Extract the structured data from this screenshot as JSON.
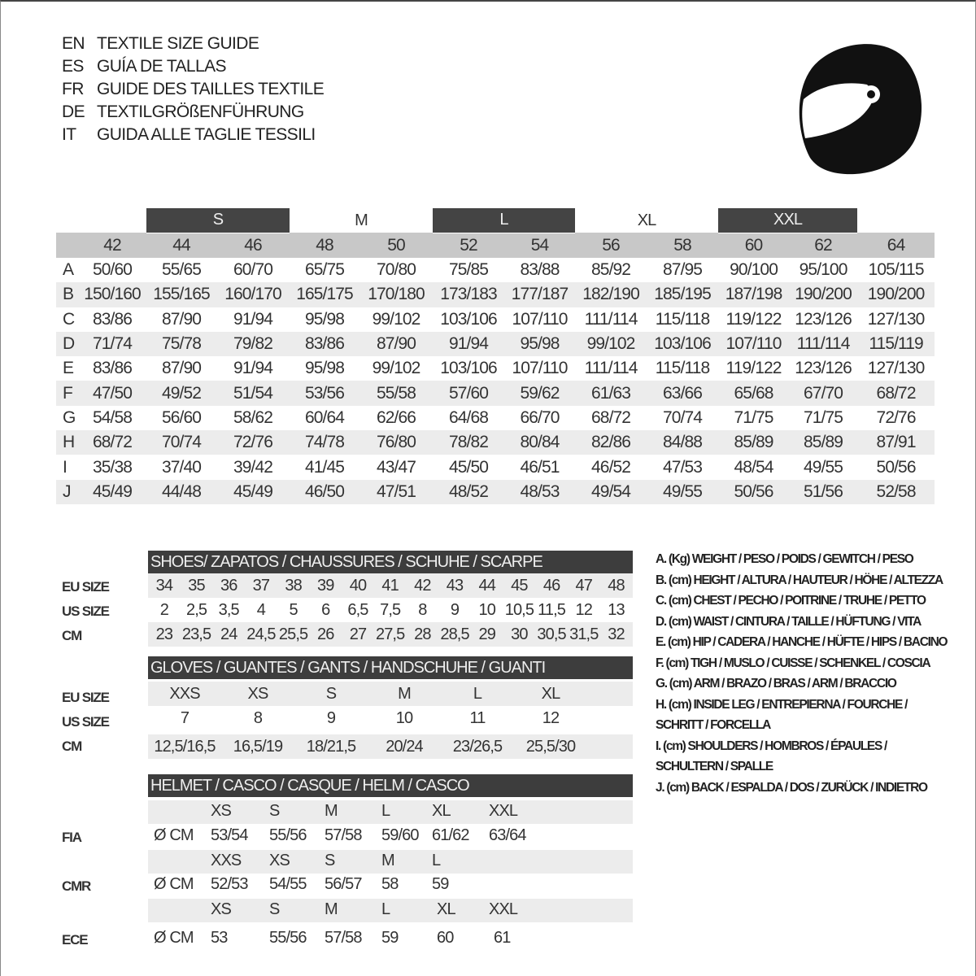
{
  "titles": [
    {
      "code": "EN",
      "text": "TEXTILE SIZE GUIDE"
    },
    {
      "code": "ES",
      "text": "GUÍA DE TALLAS"
    },
    {
      "code": "FR",
      "text": "GUIDE DES TAILLES TEXTILE"
    },
    {
      "code": "DE",
      "text": "TEXTILGRÖßENFÜHRUNG"
    },
    {
      "code": "IT",
      "text": "GUIDA ALLE TAGLIE TESSILI"
    }
  ],
  "icon": "helmet-icon",
  "textile": {
    "size_bands": [
      "S",
      "M",
      "L",
      "XL",
      "XXL"
    ],
    "columns": [
      "42",
      "44",
      "46",
      "48",
      "50",
      "52",
      "54",
      "56",
      "58",
      "60",
      "62",
      "64"
    ],
    "rows": [
      {
        "label": "A",
        "values": [
          "50/60",
          "55/65",
          "60/70",
          "65/75",
          "70/80",
          "75/85",
          "83/88",
          "85/92",
          "87/95",
          "90/100",
          "95/100",
          "105/115"
        ]
      },
      {
        "label": "B",
        "values": [
          "150/160",
          "155/165",
          "160/170",
          "165/175",
          "170/180",
          "173/183",
          "177/187",
          "182/190",
          "185/195",
          "187/198",
          "190/200",
          "190/200"
        ]
      },
      {
        "label": "C",
        "values": [
          "83/86",
          "87/90",
          "91/94",
          "95/98",
          "99/102",
          "103/106",
          "107/110",
          "111/114",
          "115/118",
          "119/122",
          "123/126",
          "127/130"
        ]
      },
      {
        "label": "D",
        "values": [
          "71/74",
          "75/78",
          "79/82",
          "83/86",
          "87/90",
          "91/94",
          "95/98",
          "99/102",
          "103/106",
          "107/110",
          "111/114",
          "115/119"
        ]
      },
      {
        "label": "E",
        "values": [
          "83/86",
          "87/90",
          "91/94",
          "95/98",
          "99/102",
          "103/106",
          "107/110",
          "111/114",
          "115/118",
          "119/122",
          "123/126",
          "127/130"
        ]
      },
      {
        "label": "F",
        "values": [
          "47/50",
          "49/52",
          "51/54",
          "53/56",
          "55/58",
          "57/60",
          "59/62",
          "61/63",
          "63/66",
          "65/68",
          "67/70",
          "68/72"
        ]
      },
      {
        "label": "G",
        "values": [
          "54/58",
          "56/60",
          "58/62",
          "60/64",
          "62/66",
          "64/68",
          "66/70",
          "68/72",
          "70/74",
          "71/75",
          "71/75",
          "72/76"
        ]
      },
      {
        "label": "H",
        "values": [
          "68/72",
          "70/74",
          "72/76",
          "74/78",
          "76/80",
          "78/82",
          "80/84",
          "82/86",
          "84/88",
          "85/89",
          "85/89",
          "87/91"
        ]
      },
      {
        "label": "I",
        "values": [
          "35/38",
          "37/40",
          "39/42",
          "41/45",
          "43/47",
          "45/50",
          "46/51",
          "46/52",
          "47/53",
          "48/54",
          "49/55",
          "50/56"
        ]
      },
      {
        "label": "J",
        "values": [
          "45/49",
          "44/48",
          "45/49",
          "46/50",
          "47/51",
          "48/52",
          "48/53",
          "49/54",
          "49/55",
          "50/56",
          "51/56",
          "52/58"
        ]
      }
    ]
  },
  "shoes": {
    "title": "SHOES/ ZAPATOS / CHAUSSURES / SCHUHE / SCARPE",
    "rows": [
      {
        "label": "EU SIZE",
        "values": [
          "34",
          "35",
          "36",
          "37",
          "38",
          "39",
          "40",
          "41",
          "42",
          "43",
          "44",
          "45",
          "46",
          "47",
          "48"
        ]
      },
      {
        "label": "US SIZE",
        "values": [
          "2",
          "2,5",
          "3,5",
          "4",
          "5",
          "6",
          "6,5",
          "7,5",
          "8",
          "9",
          "10",
          "10,5",
          "11,5",
          "12",
          "13"
        ]
      },
      {
        "label": "CM",
        "values": [
          "23",
          "23,5",
          "24",
          "24,5",
          "25,5",
          "26",
          "27",
          "27,5",
          "28",
          "28,5",
          "29",
          "30",
          "30,5",
          "31,5",
          "32"
        ]
      }
    ]
  },
  "gloves": {
    "title": "GLOVES / GUANTES / GANTS / HANDSCHUHE / GUANTI",
    "rows": [
      {
        "label": "EU SIZE",
        "values": [
          "XXS",
          "XS",
          "S",
          "M",
          "L",
          "XL"
        ]
      },
      {
        "label": "US SIZE",
        "values": [
          "7",
          "8",
          "9",
          "10",
          "11",
          "12"
        ]
      },
      {
        "label": "CM",
        "values": [
          "12,5/16,5",
          "16,5/19",
          "18/21,5",
          "20/24",
          "23/26,5",
          "25,5/30"
        ]
      }
    ]
  },
  "helmet": {
    "title": "HELMET / CASCO / CASQUE / HELM / CASCO",
    "unit": "Ø CM",
    "groups": [
      {
        "label": "FIA",
        "sizes": [
          "XS",
          "S",
          "M",
          "L",
          "XL",
          "XXL"
        ],
        "values": [
          "53/54",
          "55/56",
          "57/58",
          "59/60",
          "61/62",
          "63/64"
        ]
      },
      {
        "label": "CMR",
        "sizes": [
          "XXS",
          "XS",
          "S",
          "M",
          "L"
        ],
        "values": [
          "52/53",
          "54/55",
          "56/57",
          "58",
          "59"
        ]
      },
      {
        "label": "ECE",
        "sizes": [
          "XS",
          "S",
          "M",
          "L",
          "XL",
          "XXL"
        ],
        "values": [
          "53",
          "55/56",
          "57/58",
          "59",
          "60",
          "61"
        ]
      }
    ]
  },
  "legend": [
    "A. (Kg) WEIGHT / PESO / POIDS / GEWITCH / PESO",
    "B. (cm) HEIGHT / ALTURA / HAUTEUR / HÖHE / ALTEZZA",
    "C. (cm) CHEST / PECHO / POITRINE / TRUHE / PETTO",
    "D. (cm) WAIST / CINTURA / TAILLE / HÜFTUNG / VITA",
    "E. (cm) HIP / CADERA / HANCHE / HÜFTE / HIPS /  BACINO",
    "F.  (cm) TIGH / MUSLO / CUISSE / SCHENKEL / COSCIA",
    "G. (cm) ARM  / BRAZO / BRAS / ARM / BRACCIO",
    "H. (cm) INSIDE LEG / ENTREPIERNA / FOURCHE /",
    "SCHRITT / FORCELLA",
    "I.  (cm) SHOULDERS / HOMBROS / ÉPAULES /",
    "SCHULTERN / SPALLE",
    "J. (cm) BACK / ESPALDA / DOS / ZURÜCK / INDIETRO"
  ]
}
